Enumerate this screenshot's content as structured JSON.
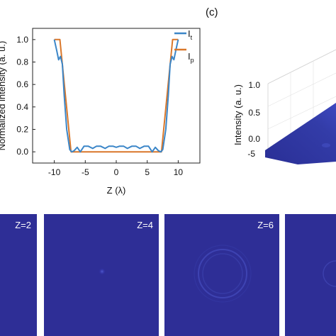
{
  "panel_c_label": "(c)",
  "chart_data": [
    {
      "type": "line",
      "xlabel": "Z (λ)",
      "ylabel": "Normalized intensity (a. u.)",
      "xlim": [
        -13.5,
        13.5
      ],
      "ylim": [
        -0.1,
        1.1
      ],
      "xticks": [
        -10,
        -5,
        0,
        5,
        10
      ],
      "yticks": [
        0.0,
        0.2,
        0.4,
        0.6,
        0.8,
        1.0
      ],
      "tick_labels_x": [
        "-10",
        "-5",
        "0",
        "5",
        "10"
      ],
      "tick_labels_y": [
        "0.0",
        "0.2",
        "0.4",
        "0.6",
        "0.8",
        "1.0"
      ],
      "legend": {
        "placement": "top-right",
        "entries": [
          "I",
          "I"
        ],
        "subscripts": [
          "t",
          "p"
        ]
      },
      "series": [
        {
          "name": "I_t",
          "color": "#3b86c8",
          "x": [
            -10,
            -9.6,
            -9.3,
            -9.0,
            -8.7,
            -8.4,
            -8.0,
            -7.5,
            -7.2,
            -6.8,
            -6.3,
            -5.8,
            -5.2,
            -4.5,
            -3.8,
            -3.2,
            -2.5,
            -1.8,
            -1.2,
            -0.5,
            0,
            0.5,
            1.2,
            1.8,
            2.5,
            3.2,
            3.8,
            4.5,
            5.2,
            5.8,
            6.3,
            6.8,
            7.2,
            7.5,
            8.0,
            8.4,
            8.7,
            9.0,
            9.3,
            9.6,
            10
          ],
          "y": [
            1.0,
            0.9,
            0.82,
            0.85,
            0.78,
            0.5,
            0.2,
            0.02,
            0.0,
            0.01,
            0.04,
            0.0,
            0.05,
            0.05,
            0.03,
            0.05,
            0.05,
            0.03,
            0.05,
            0.05,
            0.04,
            0.05,
            0.05,
            0.03,
            0.05,
            0.05,
            0.03,
            0.05,
            0.05,
            0.0,
            0.04,
            0.01,
            0.0,
            0.02,
            0.2,
            0.5,
            0.78,
            0.85,
            0.82,
            0.9,
            1.0
          ]
        },
        {
          "name": "I_p",
          "color": "#d9772a",
          "x": [
            -10,
            -9.1,
            -7.3,
            7.3,
            9.1,
            10
          ],
          "y": [
            1.0,
            1.0,
            0.0,
            0.0,
            1.0,
            1.0
          ]
        }
      ]
    },
    {
      "type": "surface",
      "zlabel": "Intensity (a. u.)",
      "zticks": [
        "0.0",
        "0.5",
        "1.0"
      ],
      "xticks_visible": [
        "-5"
      ]
    },
    {
      "type": "heatmap",
      "colormap": "blue",
      "panels": [
        {
          "label": "Z=2"
        },
        {
          "label": "Z=4"
        },
        {
          "label": "Z=6"
        },
        {
          "label": ""
        }
      ]
    }
  ]
}
